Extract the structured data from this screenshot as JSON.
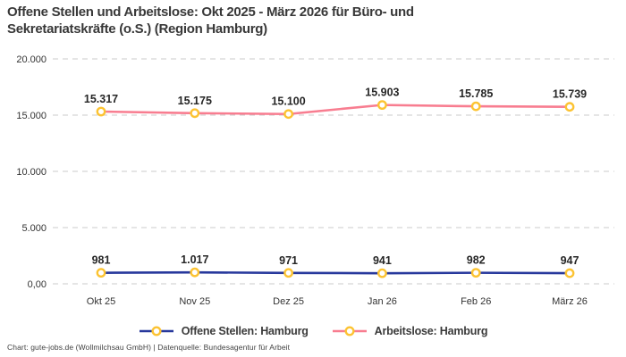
{
  "header": {
    "title_line1": "Offene Stellen und Arbeitslose: Okt 2025 - März 2026 für Büro- und",
    "title_line2": "Sekretariatskräfte (o.S.) (Region Hamburg)"
  },
  "footer": {
    "credit": "Chart: gute-jobs.de (Wollmilchsau GmbH) | Datenquelle: Bundesagentur für Arbeit"
  },
  "colors": {
    "open_positions_line": "#27389c",
    "unemployed_line": "#f87d90",
    "marker_stroke": "#fcc332",
    "marker_fill": "#ffffff",
    "gridline": "#cbcbcb",
    "axis_label": "#333333",
    "data_label": "#262626",
    "title_text": "#383838"
  },
  "chart_data": {
    "type": "line",
    "title": "Offene Stellen und Arbeitslose: Okt 2025 - März 2026 für Büro- und Sekretariatskräfte (o.S.) (Region Hamburg)",
    "categories": [
      "Okt 25",
      "Nov 25",
      "Dez 25",
      "Jan 26",
      "Feb 26",
      "März 26"
    ],
    "series": [
      {
        "name": "Offene Stellen: Hamburg",
        "color": "#27389c",
        "values": [
          981,
          1017,
          971,
          941,
          982,
          947
        ],
        "value_labels": [
          "981",
          "1.017",
          "971",
          "941",
          "982",
          "947"
        ]
      },
      {
        "name": "Arbeitslose: Hamburg",
        "color": "#f87d90",
        "values": [
          15317,
          15175,
          15100,
          15903,
          15785,
          15739
        ],
        "value_labels": [
          "15.317",
          "15.175",
          "15.100",
          "15.903",
          "15.785",
          "15.739"
        ]
      }
    ],
    "y_ticks": [
      {
        "label": "20.000",
        "value": 20000
      },
      {
        "label": "15.000",
        "value": 15000
      },
      {
        "label": "10.000",
        "value": 10000
      },
      {
        "label": "5.000",
        "value": 5000
      },
      {
        "label": "0,00",
        "value": 0
      }
    ],
    "ylim": [
      0,
      20000
    ],
    "grid": "dashed horizontal",
    "legend_position": "bottom",
    "marker": {
      "fill": "#ffffff",
      "stroke": "#fcc332"
    }
  }
}
